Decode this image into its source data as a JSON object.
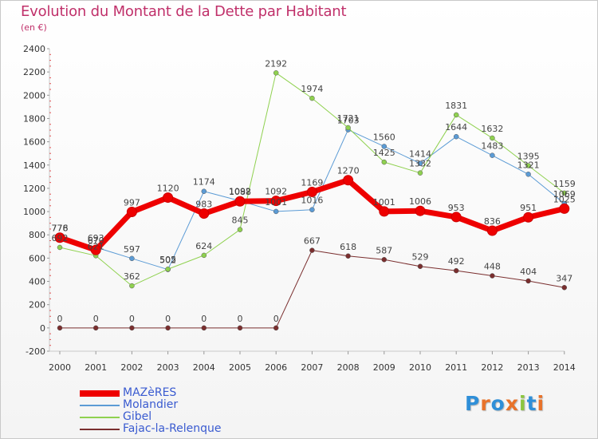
{
  "title": "Evolution du Montant de la Dette par Habitant",
  "subtitle": "(en €)",
  "brand": {
    "text": "Proxiti",
    "letters": [
      {
        "ch": "P",
        "color": "#2f8fd8"
      },
      {
        "ch": "r",
        "color": "#e8722a"
      },
      {
        "ch": "o",
        "color": "#2f8fd8"
      },
      {
        "ch": "x",
        "color": "#e8722a"
      },
      {
        "ch": "i",
        "color": "#8cc63f"
      },
      {
        "ch": "t",
        "color": "#2f8fd8"
      },
      {
        "ch": "i",
        "color": "#e8722a"
      }
    ]
  },
  "chart_data": {
    "type": "line",
    "x": [
      "2000",
      "2001",
      "2002",
      "2003",
      "2004",
      "2005",
      "2006",
      "2007",
      "2008",
      "2009",
      "2010",
      "2011",
      "2012",
      "2013",
      "2014"
    ],
    "ylim": [
      -200,
      2400
    ],
    "yticks": [
      "-200",
      "0",
      "200",
      "400",
      "600",
      "800",
      "1000",
      "1200",
      "1400",
      "1600",
      "1800",
      "2000",
      "2200",
      "2400"
    ],
    "grid": false,
    "legend_position": "bottom-left",
    "series": [
      {
        "name": "MAZèRES",
        "color": "#ee0000",
        "width": 7,
        "values": [
          776,
          670,
          997,
          1120,
          983,
          1088,
          1092,
          1169,
          1270,
          1001,
          1006,
          953,
          836,
          951,
          1025
        ],
        "labels": [
          "776",
          "670",
          "997",
          "1120",
          "983",
          "1088",
          "1092",
          "1169",
          "1270",
          "1001",
          "1006",
          "953",
          "836",
          "951",
          "1025"
        ]
      },
      {
        "name": "Molandier",
        "color": "#5b9bd5",
        "width": 1,
        "values": [
          778,
          693,
          597,
          502,
          1174,
          1092,
          1001,
          1016,
          1703,
          1560,
          1414,
          1644,
          1483,
          1321,
          1069
        ],
        "labels": [
          "778",
          "693",
          "597",
          "502",
          "1174",
          "1092",
          "1001",
          "1016",
          "1703",
          "1560",
          "1414",
          "1644",
          "1483",
          "1321",
          "1069"
        ]
      },
      {
        "name": "Gibel",
        "color": "#8fd14f",
        "width": 1,
        "values": [
          692,
          621,
          362,
          505,
          624,
          845,
          2192,
          1974,
          1721,
          1425,
          1332,
          1831,
          1632,
          1395,
          1159
        ],
        "labels": [
          "692",
          "621",
          "362",
          "505",
          "624",
          "845",
          "2192",
          "1974",
          "1721",
          "1425",
          "1332",
          "1831",
          "1632",
          "1395",
          "1159"
        ]
      },
      {
        "name": "Fajac-la-Relenque",
        "color": "#7a2e2e",
        "width": 1,
        "values": [
          0,
          0,
          0,
          0,
          0,
          0,
          0,
          667,
          618,
          587,
          529,
          492,
          448,
          404,
          347
        ],
        "labels": [
          "0",
          "0",
          "0",
          "0",
          "0",
          "0",
          "0",
          "667",
          "618",
          "587",
          "529",
          "492",
          "448",
          "404",
          "347"
        ]
      }
    ]
  }
}
